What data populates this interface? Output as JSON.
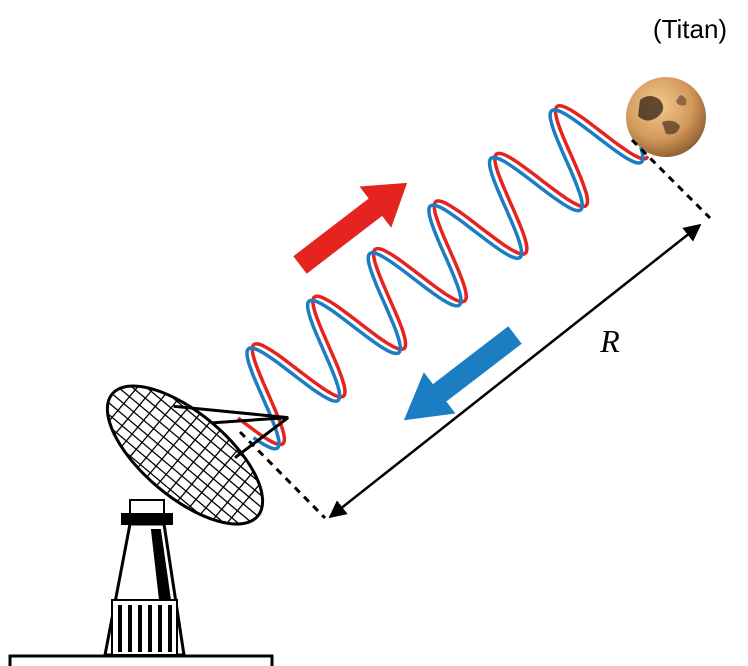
{
  "labels": {
    "target": "(Titan)",
    "distance": "R"
  }
}
